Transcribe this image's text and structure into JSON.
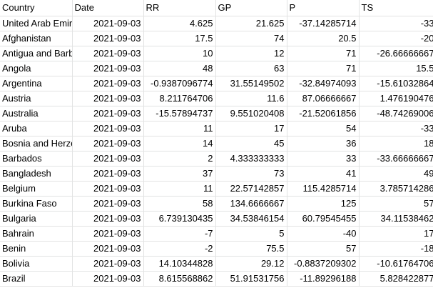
{
  "headers": [
    "Country",
    "Date",
    "RR",
    "GP",
    "P",
    "TS"
  ],
  "rows": [
    [
      "United Arab Emirates",
      "2021-09-03",
      "4.625",
      "21.625",
      "-37.14285714",
      "-33"
    ],
    [
      "Afghanistan",
      "2021-09-03",
      "17.5",
      "74",
      "20.5",
      "-20"
    ],
    [
      "Antigua and Barbuda",
      "2021-09-03",
      "10",
      "12",
      "71",
      "-26.66666667"
    ],
    [
      "Angola",
      "2021-09-03",
      "48",
      "63",
      "71",
      "15.5"
    ],
    [
      "Argentina",
      "2021-09-03",
      "-0.9387096774",
      "31.55149502",
      "-32.84974093",
      "-15.61032864"
    ],
    [
      "Austria",
      "2021-09-03",
      "8.211764706",
      "11.6",
      "87.06666667",
      "1.476190476"
    ],
    [
      "Australia",
      "2021-09-03",
      "-15.57894737",
      "9.551020408",
      "-21.52061856",
      "-48.74269006"
    ],
    [
      "Aruba",
      "2021-09-03",
      "11",
      "17",
      "54",
      "-33"
    ],
    [
      "Bosnia and Herzegovina",
      "2021-09-03",
      "14",
      "45",
      "36",
      "18"
    ],
    [
      "Barbados",
      "2021-09-03",
      "2",
      "4.333333333",
      "33",
      "-33.66666667"
    ],
    [
      "Bangladesh",
      "2021-09-03",
      "37",
      "73",
      "41",
      "49"
    ],
    [
      "Belgium",
      "2021-09-03",
      "11",
      "22.57142857",
      "115.4285714",
      "3.785714286"
    ],
    [
      "Burkina Faso",
      "2021-09-03",
      "58",
      "134.6666667",
      "125",
      "57"
    ],
    [
      "Bulgaria",
      "2021-09-03",
      "6.739130435",
      "34.53846154",
      "60.79545455",
      "34.11538462"
    ],
    [
      "Bahrain",
      "2021-09-03",
      "-7",
      "5",
      "-40",
      "17"
    ],
    [
      "Benin",
      "2021-09-03",
      "-2",
      "75.5",
      "57",
      "-18"
    ],
    [
      "Bolivia",
      "2021-09-03",
      "14.10344828",
      "29.12",
      "-0.8837209302",
      "-10.61764706"
    ],
    [
      "Brazil",
      "2021-09-03",
      "8.615568862",
      "51.91531756",
      "-11.89296188",
      "5.828422877"
    ]
  ],
  "column_align": [
    "left",
    "right",
    "right",
    "right",
    "right",
    "right"
  ]
}
